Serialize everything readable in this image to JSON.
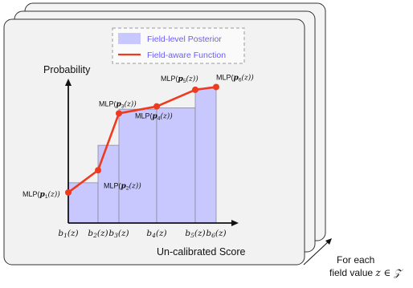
{
  "legend": {
    "posterior_label": "Field-level Posterior",
    "function_label": "Field-aware Function",
    "text_color": "#6a5cff",
    "line_color": "#ee3a1f",
    "bar_fill": "#c8c8ff"
  },
  "axes": {
    "y_label": "Probability",
    "x_label": "Un-calibrated Score"
  },
  "chart_data": {
    "type": "bar",
    "bin_edges": [
      "b_1(z)",
      "b_2(z)",
      "b_3(z)",
      "b_4(z)",
      "b_5(z)",
      "b_6(z)"
    ],
    "bars": [
      0.29,
      0.56,
      0.82,
      0.83,
      0.97
    ],
    "points": [
      {
        "label_prefix": "MLP",
        "label_arg": "p_1(z)",
        "value": 0.22
      },
      {
        "label_prefix": "MLP",
        "label_arg": "p_2(z)",
        "value": 0.38
      },
      {
        "label_prefix": "MLP",
        "label_arg": "p_3(z)",
        "value": 0.79
      },
      {
        "label_prefix": "MLP",
        "label_arg": "p_4(z)",
        "value": 0.84
      },
      {
        "label_prefix": "MLP",
        "label_arg": "p_5(z)",
        "value": 0.96
      },
      {
        "label_prefix": "MLP",
        "label_arg": "p_6(z)",
        "value": 0.98
      }
    ]
  },
  "footer": {
    "line1": "For each",
    "line2_prefix": "field value",
    "line2_math": "z ∈ 𝒵"
  }
}
